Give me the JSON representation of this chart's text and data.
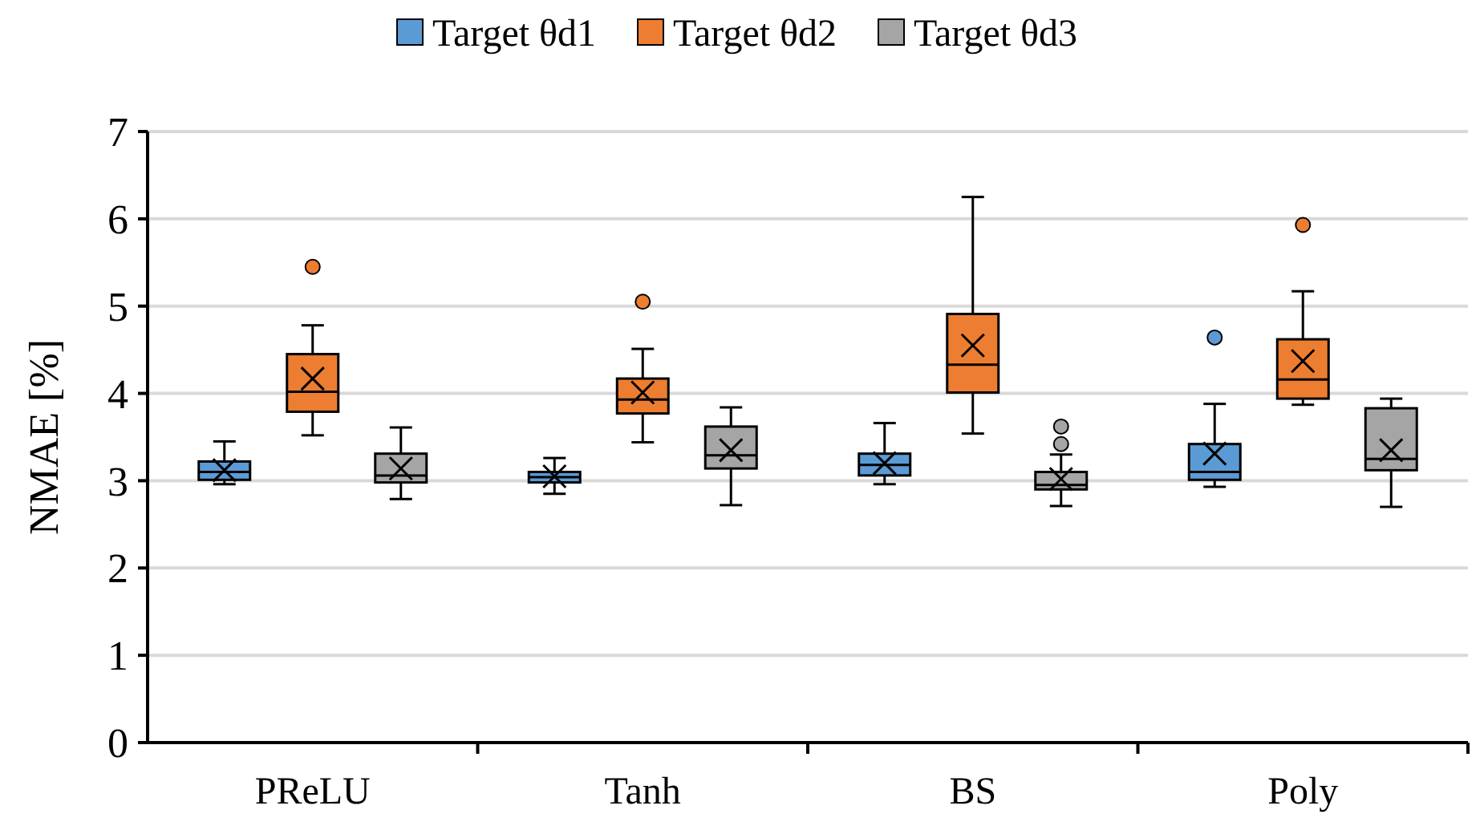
{
  "chart_data": {
    "type": "box",
    "ylabel": "NMAE [%]",
    "categories": [
      "PReLU",
      "Tanh",
      "BS",
      "Poly"
    ],
    "ylim": [
      0,
      7
    ],
    "yticks": [
      0,
      1,
      2,
      3,
      4,
      5,
      6,
      7
    ],
    "grid": "y",
    "legend": "top",
    "series": [
      {
        "name": "Target θd1",
        "color": "#5b9bd5",
        "boxes": [
          {
            "low": 2.96,
            "q1": 3.01,
            "median": 3.1,
            "q3": 3.22,
            "high": 3.45,
            "mean": 3.12
          },
          {
            "low": 2.85,
            "q1": 2.98,
            "median": 3.04,
            "q3": 3.1,
            "high": 3.26,
            "mean": 3.05
          },
          {
            "low": 2.96,
            "q1": 3.06,
            "median": 3.18,
            "q3": 3.31,
            "high": 3.66,
            "mean": 3.2
          },
          {
            "low": 2.93,
            "q1": 3.01,
            "median": 3.1,
            "q3": 3.42,
            "high": 3.88,
            "mean": 3.31,
            "outliers": [
              4.64
            ]
          }
        ]
      },
      {
        "name": "Target θd2",
        "color": "#ed7d31",
        "boxes": [
          {
            "low": 3.52,
            "q1": 3.79,
            "median": 4.02,
            "q3": 4.45,
            "high": 4.78,
            "mean": 4.17,
            "outliers": [
              5.45
            ]
          },
          {
            "low": 3.44,
            "q1": 3.77,
            "median": 3.93,
            "q3": 4.17,
            "high": 4.51,
            "mean": 4.01,
            "outliers": [
              5.05
            ]
          },
          {
            "low": 3.54,
            "q1": 4.01,
            "median": 4.33,
            "q3": 4.91,
            "high": 6.25,
            "mean": 4.55
          },
          {
            "low": 3.87,
            "q1": 3.94,
            "median": 4.16,
            "q3": 4.62,
            "high": 5.17,
            "mean": 4.37,
            "outliers": [
              5.93
            ]
          }
        ]
      },
      {
        "name": "Target θd3",
        "color": "#a5a5a5",
        "boxes": [
          {
            "low": 2.79,
            "q1": 2.98,
            "median": 3.06,
            "q3": 3.31,
            "high": 3.61,
            "mean": 3.14
          },
          {
            "low": 2.72,
            "q1": 3.14,
            "median": 3.29,
            "q3": 3.62,
            "high": 3.84,
            "mean": 3.35
          },
          {
            "low": 2.71,
            "q1": 2.9,
            "median": 2.95,
            "q3": 3.1,
            "high": 3.3,
            "mean": 3.02,
            "outliers": [
              3.42,
              3.62
            ]
          },
          {
            "low": 2.7,
            "q1": 3.12,
            "median": 3.25,
            "q3": 3.83,
            "high": 3.94,
            "mean": 3.35
          }
        ]
      }
    ]
  }
}
